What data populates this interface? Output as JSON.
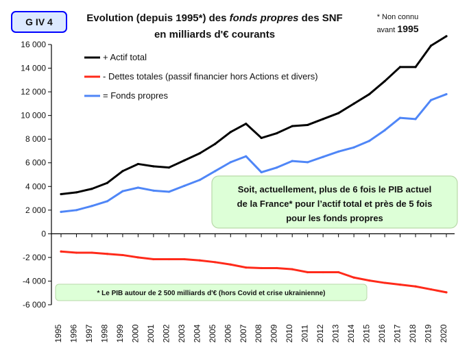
{
  "badge": "G IV 4",
  "title_line1_part1": "Evolution (depuis 1995*) des ",
  "title_line1_italic": "fonds propres",
  "title_line1_part2": " des SNF",
  "title_line2": "en milliards d'€ courants",
  "note_line1": "* Non connu",
  "note_line2_prefix": "avant ",
  "note_line2_year": "1995",
  "callout_lines": [
    "Soit, actuellement, plus de 6 fois le PIB actuel",
    "de la France* pour l’actif total  et près de 5 fois",
    "pour les fonds propres"
  ],
  "pib_note": "* Le PIB autour de 2 500 milliards d'€ (hors Covid et crise ukrainienne)",
  "chart_data": {
    "type": "line",
    "x": [
      1995,
      1996,
      1997,
      1998,
      1999,
      2000,
      2001,
      2002,
      2003,
      2004,
      2005,
      2006,
      2007,
      2008,
      2009,
      2010,
      2011,
      2012,
      2013,
      2014,
      2015,
      2016,
      2017,
      2018,
      2019,
      2020
    ],
    "ylim": [
      -6000,
      16000
    ],
    "y_ticks": [
      "16 000",
      "14 000",
      "12 000",
      "10 000",
      "8 000",
      "6 000",
      "4 000",
      "2 000",
      "0",
      "-2 000",
      "-4 000",
      "-6 000"
    ],
    "grid": false,
    "legend_position": "top-left",
    "series": [
      {
        "name": "+ Actif total",
        "color": "#000000",
        "values": [
          3350,
          3500,
          3800,
          4300,
          5300,
          5900,
          5700,
          5600,
          6200,
          6800,
          7600,
          8600,
          9300,
          8100,
          8500,
          9100,
          9200,
          9700,
          10200,
          11000,
          11800,
          12900,
          14100,
          14100,
          15900,
          16700
        ]
      },
      {
        "name": "- Dettes totales (passif financier hors Actions et divers)",
        "color": "#ff2a1a",
        "values": [
          -1500,
          -1600,
          -1600,
          -1700,
          -1800,
          -2000,
          -2150,
          -2150,
          -2150,
          -2250,
          -2400,
          -2600,
          -2850,
          -2900,
          -2900,
          -3000,
          -3250,
          -3250,
          -3250,
          -3700,
          -3950,
          -4150,
          -4300,
          -4450,
          -4700,
          -4950
        ]
      },
      {
        "name": "= Fonds propres",
        "color": "#4f86f7",
        "values": [
          1850,
          2000,
          2350,
          2750,
          3600,
          3900,
          3650,
          3550,
          4050,
          4550,
          5300,
          6050,
          6550,
          5200,
          5600,
          6150,
          6050,
          6500,
          6950,
          7300,
          7850,
          8750,
          9800,
          9700,
          11300,
          11800
        ]
      }
    ]
  }
}
